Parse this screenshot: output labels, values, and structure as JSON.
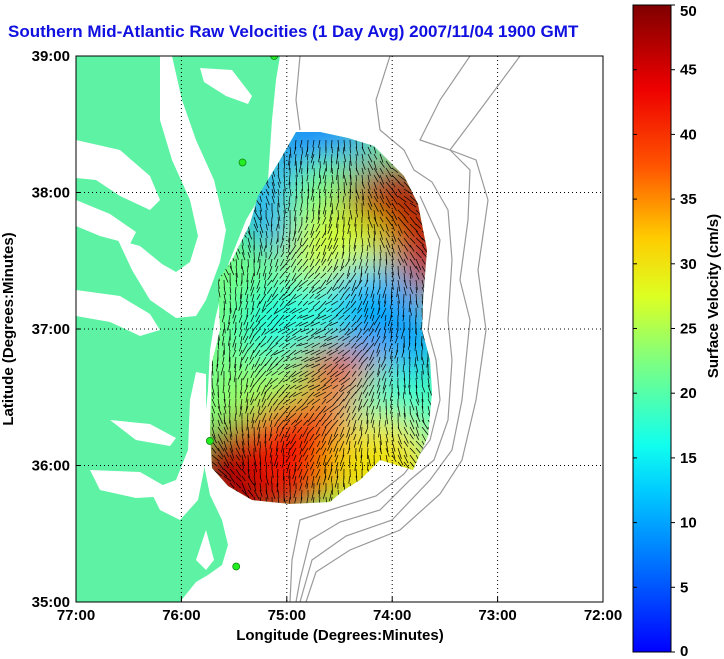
{
  "chart_data": {
    "type": "heatmap",
    "title": "Southern Mid-Atlantic Raw Velocities (1 Day Avg) 2007/11/04 1900 GMT",
    "xlabel": "Longitude (Degrees:Minutes)",
    "ylabel": "Latitude (Degrees:Minutes)",
    "xlim": [
      -77,
      -72
    ],
    "ylim": [
      35,
      39
    ],
    "x_ticks": [
      {
        "value": -77,
        "label": "77:00"
      },
      {
        "value": -76,
        "label": "76:00"
      },
      {
        "value": -75,
        "label": "75:00"
      },
      {
        "value": -74,
        "label": "74:00"
      },
      {
        "value": -73,
        "label": "73:00"
      },
      {
        "value": -72,
        "label": "72:00"
      }
    ],
    "y_ticks": [
      {
        "value": 35,
        "label": "35:00"
      },
      {
        "value": 36,
        "label": "36:00"
      },
      {
        "value": 37,
        "label": "37:00"
      },
      {
        "value": 38,
        "label": "38:00"
      },
      {
        "value": 39,
        "label": "39:00"
      }
    ],
    "grid": true,
    "colorbar": {
      "label": "Surface Velocity (cm/s)",
      "min": 0,
      "max": 50,
      "ticks": [
        0,
        5,
        10,
        15,
        20,
        25,
        30,
        35,
        40,
        45,
        50
      ],
      "colormap": "jet"
    },
    "land_color": "#5ef2a4",
    "water_color": "#ffffff",
    "station_color": "#22ee22",
    "stations": [
      {
        "lon": -75.12,
        "lat": 39.0
      },
      {
        "lon": -75.42,
        "lat": 38.22
      },
      {
        "lon": -75.73,
        "lat": 36.18
      },
      {
        "lon": -75.48,
        "lat": 35.26
      }
    ],
    "velocity_field": [
      {
        "lon": -74.7,
        "lat": 38.3,
        "speed": 8
      },
      {
        "lon": -74.95,
        "lat": 37.9,
        "speed": 10
      },
      {
        "lon": -74.55,
        "lat": 37.9,
        "speed": 22
      },
      {
        "lon": -74.05,
        "lat": 37.8,
        "speed": 47
      },
      {
        "lon": -73.9,
        "lat": 37.55,
        "speed": 46
      },
      {
        "lon": -74.5,
        "lat": 37.5,
        "speed": 27
      },
      {
        "lon": -74.2,
        "lat": 37.1,
        "speed": 12
      },
      {
        "lon": -74.0,
        "lat": 36.9,
        "speed": 10
      },
      {
        "lon": -74.95,
        "lat": 37.0,
        "speed": 17
      },
      {
        "lon": -74.6,
        "lat": 36.5,
        "speed": 45
      },
      {
        "lon": -74.25,
        "lat": 36.4,
        "speed": 38
      },
      {
        "lon": -75.15,
        "lat": 36.4,
        "speed": 24
      },
      {
        "lon": -75.35,
        "lat": 35.95,
        "speed": 48
      },
      {
        "lon": -74.9,
        "lat": 36.1,
        "speed": 42
      },
      {
        "lon": -73.95,
        "lat": 36.35,
        "speed": 18
      },
      {
        "lon": -74.1,
        "lat": 36.0,
        "speed": 30
      }
    ]
  }
}
